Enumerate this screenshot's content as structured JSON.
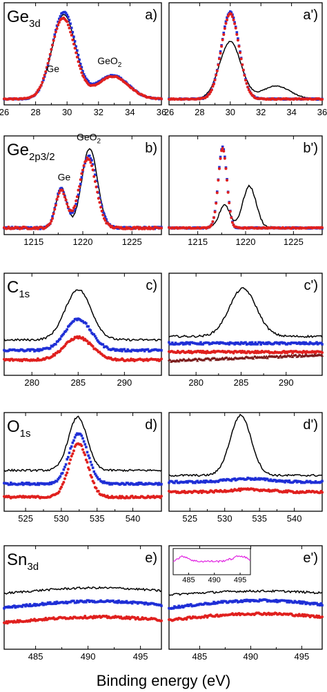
{
  "figure": {
    "xlabel": "Binding energy (eV)",
    "colors": {
      "black": "#000000",
      "blue": "#1f2fd6",
      "red": "#e0201e",
      "brown": "#7a1a1a",
      "magenta": "#e020e0"
    }
  },
  "chart_data": [
    {
      "id": "a",
      "type": "line",
      "panel_label": "a)",
      "core_level": "Ge",
      "core_sub": "3d",
      "xlim": [
        26,
        36
      ],
      "xticks": [
        "26",
        "28",
        "30",
        "32",
        "34",
        "36"
      ],
      "annotations": [
        {
          "text": "Ge",
          "x": 29.1,
          "y": 0.33
        },
        {
          "text": "GeO",
          "sub": "2",
          "x": 32.7,
          "y": 0.42
        }
      ],
      "series": [
        {
          "color": "black",
          "style": "line",
          "peaks": [
            [
              29.8,
              0.97,
              0.75
            ],
            [
              32.9,
              0.26,
              1.0
            ]
          ],
          "base": 0.02
        },
        {
          "color": "blue",
          "style": "square",
          "peaks": [
            [
              29.8,
              1.0,
              0.75
            ],
            [
              32.9,
              0.27,
              1.0
            ]
          ],
          "base": 0.02
        },
        {
          "color": "red",
          "style": "circle",
          "peaks": [
            [
              29.75,
              0.93,
              0.75
            ],
            [
              32.9,
              0.26,
              1.0
            ]
          ],
          "base": 0.02
        }
      ]
    },
    {
      "id": "a2",
      "type": "line",
      "panel_label": "a')",
      "xlim": [
        26,
        36
      ],
      "xticks": [
        "26",
        "28",
        "30",
        "32",
        "34",
        "36"
      ],
      "series": [
        {
          "color": "black",
          "style": "line",
          "peaks": [
            [
              30.0,
              0.66,
              0.7
            ],
            [
              33.0,
              0.15,
              0.9
            ]
          ],
          "base": 0.02
        },
        {
          "color": "blue",
          "style": "square",
          "peaks": [
            [
              30.0,
              1.0,
              0.58
            ]
          ],
          "base": 0.02
        },
        {
          "color": "red",
          "style": "circle",
          "peaks": [
            [
              30.0,
              0.98,
              0.58
            ]
          ],
          "base": 0.02
        }
      ]
    },
    {
      "id": "b",
      "type": "line",
      "panel_label": "b)",
      "core_level": "Ge",
      "core_sub": "2p3/2",
      "xlim": [
        1212,
        1228
      ],
      "xticks": [
        "1215",
        "1220",
        "1225"
      ],
      "xtick_values": [
        1215,
        1220,
        1225
      ],
      "annotations": [
        {
          "text": "Ge",
          "x": 1218.1,
          "y": 0.6
        },
        {
          "text": "GeO",
          "sub": "2",
          "x": 1220.6,
          "y": 1.08
        }
      ],
      "series": [
        {
          "color": "black",
          "style": "line",
          "peaks": [
            [
              1217.8,
              0.48,
              0.55
            ],
            [
              1220.7,
              0.95,
              0.8
            ]
          ],
          "base": 0.03
        },
        {
          "color": "blue",
          "style": "square",
          "peaks": [
            [
              1217.8,
              0.47,
              0.55
            ],
            [
              1220.6,
              0.86,
              0.85
            ]
          ],
          "base": 0.03
        },
        {
          "color": "red",
          "style": "circle",
          "peaks": [
            [
              1217.8,
              0.45,
              0.55
            ],
            [
              1220.5,
              0.83,
              0.85
            ]
          ],
          "base": 0.03
        }
      ]
    },
    {
      "id": "b2",
      "type": "line",
      "panel_label": "b')",
      "xlim": [
        1212,
        1228
      ],
      "xticks": [
        "1215",
        "1220",
        "1225"
      ],
      "xtick_values": [
        1215,
        1220,
        1225
      ],
      "series": [
        {
          "color": "black",
          "style": "line",
          "peaks": [
            [
              1217.8,
              0.28,
              0.55
            ],
            [
              1220.4,
              0.5,
              0.7
            ]
          ],
          "base": 0.03
        },
        {
          "color": "blue",
          "style": "square",
          "peaks": [
            [
              1217.6,
              0.97,
              0.45
            ]
          ],
          "base": 0.03
        },
        {
          "color": "red",
          "style": "circle",
          "peaks": [
            [
              1217.6,
              0.95,
              0.45
            ]
          ],
          "base": 0.03
        }
      ]
    },
    {
      "id": "c",
      "type": "line",
      "panel_label": "c)",
      "core_level": "C",
      "core_sub": "1s",
      "xlim": [
        277,
        294
      ],
      "xticks": [
        "280",
        "285",
        "290"
      ],
      "xtick_values": [
        280,
        285,
        290
      ],
      "series": [
        {
          "color": "black",
          "style": "line",
          "peaks": [
            [
              285.0,
              0.58,
              1.4
            ]
          ],
          "base": 0.36
        },
        {
          "color": "blue",
          "style": "square",
          "peaks": [
            [
              285.0,
              0.36,
              1.4
            ]
          ],
          "base": 0.24
        },
        {
          "color": "red",
          "style": "circle",
          "peaks": [
            [
              285.0,
              0.26,
              1.5
            ]
          ],
          "base": 0.13
        }
      ]
    },
    {
      "id": "c2",
      "type": "line",
      "panel_label": "c')",
      "xlim": [
        277,
        294
      ],
      "xticks": [
        "280",
        "285",
        "290"
      ],
      "xtick_values": [
        280,
        285,
        290
      ],
      "series": [
        {
          "color": "black",
          "style": "line",
          "peaks": [
            [
              285.2,
              0.55,
              1.5
            ]
          ],
          "base": 0.4
        },
        {
          "color": "blue",
          "style": "square",
          "peaks": [],
          "base": 0.32
        },
        {
          "color": "red",
          "style": "circle",
          "peaks": [],
          "base": 0.22
        },
        {
          "color": "brown",
          "style": "triangle",
          "peaks": [],
          "base": 0.12,
          "slope": 0.004
        }
      ]
    },
    {
      "id": "d",
      "type": "line",
      "panel_label": "d)",
      "core_level": "O",
      "core_sub": "1s",
      "xlim": [
        522,
        544
      ],
      "xticks": [
        "525",
        "530",
        "535",
        "540"
      ],
      "xtick_values": [
        525,
        530,
        535,
        540
      ],
      "series": [
        {
          "color": "black",
          "style": "line",
          "peaks": [
            [
              532.3,
              0.64,
              1.3
            ]
          ],
          "base": 0.44
        },
        {
          "color": "blue",
          "style": "square",
          "peaks": [
            [
              532.4,
              0.6,
              1.3
            ]
          ],
          "base": 0.28
        },
        {
          "color": "red",
          "style": "circle",
          "peaks": [
            [
              532.4,
              0.64,
              1.3
            ]
          ],
          "base": 0.12
        }
      ]
    },
    {
      "id": "d2",
      "type": "line",
      "panel_label": "d')",
      "xlim": [
        522,
        544
      ],
      "xticks": [
        "525",
        "530",
        "535",
        "540"
      ],
      "xtick_values": [
        525,
        530,
        535,
        540
      ],
      "series": [
        {
          "color": "black",
          "style": "line",
          "peaks": [
            [
              532.3,
              0.72,
              1.5
            ]
          ],
          "base": 0.38
        },
        {
          "color": "blue",
          "style": "square",
          "peaks": [
            [
              533.5,
              0.04,
              3.0
            ]
          ],
          "base": 0.3
        },
        {
          "color": "red",
          "style": "circle",
          "peaks": [
            [
              533.5,
              0.03,
              3.0
            ]
          ],
          "base": 0.18
        }
      ]
    },
    {
      "id": "e",
      "type": "line",
      "panel_label": "e)",
      "core_level": "Sn",
      "core_sub": "3d",
      "xlim": [
        482,
        497
      ],
      "xticks": [
        "485",
        "490",
        "495"
      ],
      "xtick_values": [
        485,
        490,
        495
      ],
      "series": [
        {
          "color": "black",
          "style": "line",
          "peaks": [],
          "base": 0.6,
          "bump": 0.06
        },
        {
          "color": "blue",
          "style": "square",
          "peaks": [],
          "base": 0.44,
          "bump": 0.07
        },
        {
          "color": "red",
          "style": "circle",
          "peaks": [],
          "base": 0.27,
          "bump": 0.06
        }
      ]
    },
    {
      "id": "e2",
      "type": "line",
      "panel_label": "e')",
      "xlim": [
        482,
        497
      ],
      "xticks": [
        "485",
        "490",
        "495"
      ],
      "xtick_values": [
        485,
        490,
        495
      ],
      "inset": {
        "xticks": [
          "485",
          "490",
          "495"
        ],
        "xtick_values": [
          485,
          490,
          495
        ],
        "xlim": [
          482,
          497
        ],
        "color": "magenta"
      },
      "series": [
        {
          "color": "black",
          "style": "line",
          "peaks": [],
          "base": 0.58,
          "bump": 0.04
        },
        {
          "color": "blue",
          "style": "square",
          "peaks": [],
          "base": 0.44,
          "bump": 0.08
        },
        {
          "color": "red",
          "style": "circle",
          "peaks": [],
          "base": 0.3,
          "bump": 0.07
        }
      ]
    }
  ]
}
